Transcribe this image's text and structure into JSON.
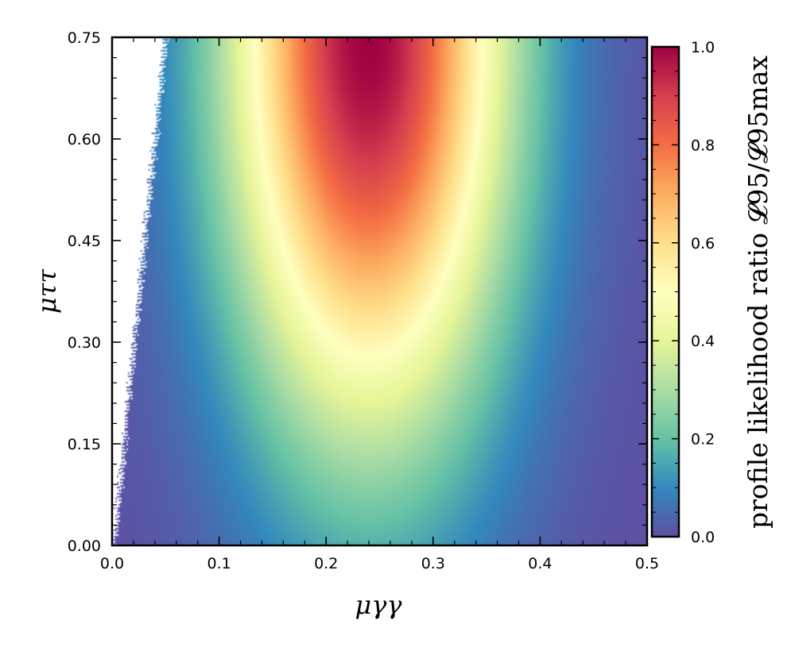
{
  "chart_data": {
    "type": "heatmap",
    "title": "",
    "xlabel": "μγγ",
    "ylabel": "μττ",
    "xlim": [
      0.0,
      0.5
    ],
    "ylim": [
      0.0,
      0.75
    ],
    "x_ticks": [
      "0.0",
      "0.1",
      "0.2",
      "0.3",
      "0.4",
      "0.5"
    ],
    "y_ticks": [
      "0.00",
      "0.15",
      "0.30",
      "0.45",
      "0.60",
      "0.75"
    ],
    "colorbar": {
      "label": "profile likelihood ratio 𝓛95/𝓛95max",
      "range": [
        0.0,
        1.0
      ],
      "ticks": [
        "0.0",
        "0.2",
        "0.4",
        "0.6",
        "0.8",
        "1.0"
      ],
      "colormap": "Spectral_r"
    },
    "peak": {
      "x": 0.24,
      "y": 0.75,
      "value": 1.0
    },
    "empty_region": "upper-left wedge (no data), boundary from x≈0.0 at y=0 to x≈0.05 at y=0.75",
    "grid": false,
    "legend": "none"
  }
}
